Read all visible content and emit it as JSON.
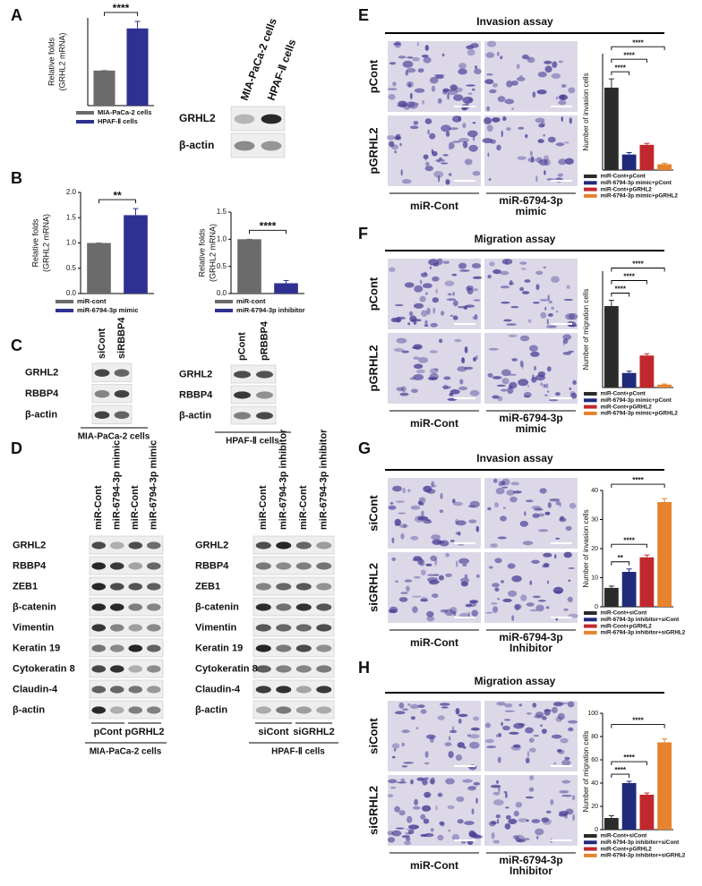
{
  "panel_labels": [
    "A",
    "B",
    "C",
    "D",
    "E",
    "F",
    "G",
    "H"
  ],
  "chart_data": [
    {
      "type": "bar",
      "ylabel": [
        "Relative folds",
        "(GRHL2 mRNA)"
      ],
      "categories": [
        "MIA-PaCa-2 cells",
        "HPAF-Ⅱ cells"
      ],
      "values": [
        1,
        2.2
      ],
      "errors": [
        0,
        0.2
      ],
      "colors": [
        "#6b6b6b",
        "#2e3192"
      ],
      "ylim": [
        0,
        2.5
      ],
      "comparisons": [
        "****"
      ]
    },
    {
      "type": "bar",
      "ylabel": [
        "Relative folds",
        "(GRHL2 mRNA)"
      ],
      "categories": [
        "miR-cont",
        "miR-6794-3p mimic"
      ],
      "values": [
        1,
        1.55
      ],
      "errors": [
        0,
        0.13
      ],
      "colors": [
        "#6b6b6b",
        "#2e3192"
      ],
      "ylim": [
        0,
        2
      ],
      "yticks": [
        {
          "value": 0,
          "label": "0.0"
        },
        0.5,
        {
          "value": 1,
          "label": "1.0"
        },
        1.5,
        {
          "value": 2,
          "label": "2.0"
        }
      ],
      "comparisons": [
        "**"
      ]
    },
    {
      "type": "bar",
      "ylabel": [
        "Relative folds",
        "(GRHL2 mRNA)"
      ],
      "categories": [
        "miR-cont",
        "miR-6794-3p inhibitor"
      ],
      "values": [
        1,
        0.19
      ],
      "errors": [
        0,
        0.05
      ],
      "colors": [
        "#6b6b6b",
        "#2e3192"
      ],
      "ylim": [
        0,
        1.5
      ],
      "yticks": [
        {
          "value": 0,
          "label": "0.0"
        },
        0.5,
        {
          "value": 1,
          "label": "1.0"
        },
        1.5
      ],
      "comparisons": [
        "****"
      ]
    },
    {
      "type": "bar",
      "ylabel": [
        "Number of invasion cells"
      ],
      "categories": [
        "miR-Cont+pCont",
        "miR-6794-3p mimic+pCont",
        "miR-Cont+pGRHL2",
        "miR-6794-3p mimic+pGRHL2"
      ],
      "values": [
        85,
        16,
        26,
        6
      ],
      "errors": [
        9,
        2,
        1.5,
        1
      ],
      "colors": [
        "#2b2b2b",
        "#1f2a7a",
        "#c1272d",
        "#e5832e"
      ],
      "ylim": [
        0,
        120
      ],
      "comparisons": [
        "****",
        "****",
        "****"
      ]
    },
    {
      "type": "bar",
      "ylabel": [
        "Number of migration cells"
      ],
      "categories": [
        "miR-Cont+pCont",
        "miR-6794-3p mimic+pCont",
        "miR-Cont+pGRHL2",
        "miR-6794-3p mimic+pGRHL2"
      ],
      "values": [
        140,
        25,
        55,
        5
      ],
      "errors": [
        10,
        3,
        3,
        1
      ],
      "colors": [
        "#2b2b2b",
        "#1f2a7a",
        "#c1272d",
        "#e5832e"
      ],
      "ylim": [
        0,
        200
      ],
      "comparisons": [
        "****",
        "****",
        "****"
      ]
    },
    {
      "type": "bar",
      "ylabel": [
        "Number of invasion cells"
      ],
      "categories": [
        "miR-Cont+siCont",
        "miR-6794-3p inhibitor+siCont",
        "miR-Cont+pGRHL2",
        "miR-6794-3p inhibitor+siGRHL2"
      ],
      "values": [
        6.5,
        12,
        17,
        36
      ],
      "errors": [
        0.6,
        1,
        0.8,
        1.2
      ],
      "colors": [
        "#2b2b2b",
        "#1f2a7a",
        "#c1272d",
        "#e5832e"
      ],
      "ylim": [
        0,
        40
      ],
      "yticks": [
        0,
        10,
        20,
        30,
        40
      ],
      "comparisons": [
        "**",
        "****",
        "****"
      ]
    },
    {
      "type": "bar",
      "ylabel": [
        "Number of migration cells"
      ],
      "categories": [
        "miR-Cont+siCont",
        "miR-6794-3p inhibitor+siCont",
        "miR-Cont+pGRHL2",
        "miR-6794-3p inhibitor+siGRHL2"
      ],
      "values": [
        10,
        40,
        30,
        75
      ],
      "errors": [
        2,
        1.5,
        1.5,
        3
      ],
      "colors": [
        "#2b2b2b",
        "#1f2a7a",
        "#c1272d",
        "#e5832e"
      ],
      "ylim": [
        0,
        100
      ],
      "yticks": [
        0,
        20,
        40,
        60,
        80,
        100
      ],
      "comparisons": [
        "****",
        "****",
        "****"
      ]
    }
  ],
  "blots": [
    {
      "columns": [
        "MIA-PaCa-2 cells",
        "HPAF-Ⅱ cells"
      ],
      "rows": [
        "GRHL2",
        "β-actin"
      ]
    },
    {
      "columns": [
        "siCont",
        "siRBBP4"
      ],
      "rows": [
        "GRHL2",
        "RBBP4",
        "β-actin"
      ],
      "caption": "MIA-PaCa-2 cells"
    },
    {
      "columns": [
        "pCont",
        "pRBBP4"
      ],
      "rows": [
        "GRHL2",
        "RBBP4",
        "β-actin"
      ],
      "caption": "HPAF-Ⅱ cells"
    },
    {
      "columns": [
        "miR-Cont",
        "miR-6794-3p mimic",
        "miR-Cont",
        "miR-6794-3p mimic"
      ],
      "rows": [
        "GRHL2",
        "RBBP4",
        "ZEB1",
        "β-catenin",
        "Vimentin",
        "Keratin 19",
        "Cytokeratin 8",
        "Claudin-4",
        "β-actin"
      ],
      "groups": [
        "pCont",
        "pGRHL2"
      ],
      "caption": "MIA-PaCa-2 cells"
    },
    {
      "columns": [
        "miR-Cont",
        "miR-6794-3p inhibitor",
        "miR-Cont",
        "miR-6794-3p inhibitor"
      ],
      "rows": [
        "GRHL2",
        "RBBP4",
        "ZEB1",
        "β-catenin",
        "Vimentin",
        "Keratin 19",
        "Cytokeratin 8",
        "Claudin-4",
        "β-actin"
      ],
      "groups": [
        "siCont",
        "siGRHL2"
      ],
      "caption": "HPAF-Ⅱ cells"
    }
  ],
  "assays": [
    {
      "title": "Invasion assay",
      "rows": [
        "pCont",
        "pGRHL2"
      ],
      "columns": [
        [
          "miR-Cont"
        ],
        [
          "miR-6794-3p",
          "mimic"
        ]
      ]
    },
    {
      "title": "Migration assay",
      "rows": [
        "pCont",
        "pGRHL2"
      ],
      "columns": [
        [
          "miR-Cont"
        ],
        [
          "miR-6794-3p",
          "mimic"
        ]
      ]
    },
    {
      "title": "Invasion assay",
      "rows": [
        "siCont",
        "siGRHL2"
      ],
      "columns": [
        [
          "miR-Cont"
        ],
        [
          "miR-6794-3p",
          "Inhibitor"
        ]
      ]
    },
    {
      "title": "Migration assay",
      "rows": [
        "siCont",
        "siGRHL2"
      ],
      "columns": [
        [
          "miR-Cont"
        ],
        [
          "miR-6794-3p",
          "Inhibitor"
        ]
      ]
    }
  ]
}
